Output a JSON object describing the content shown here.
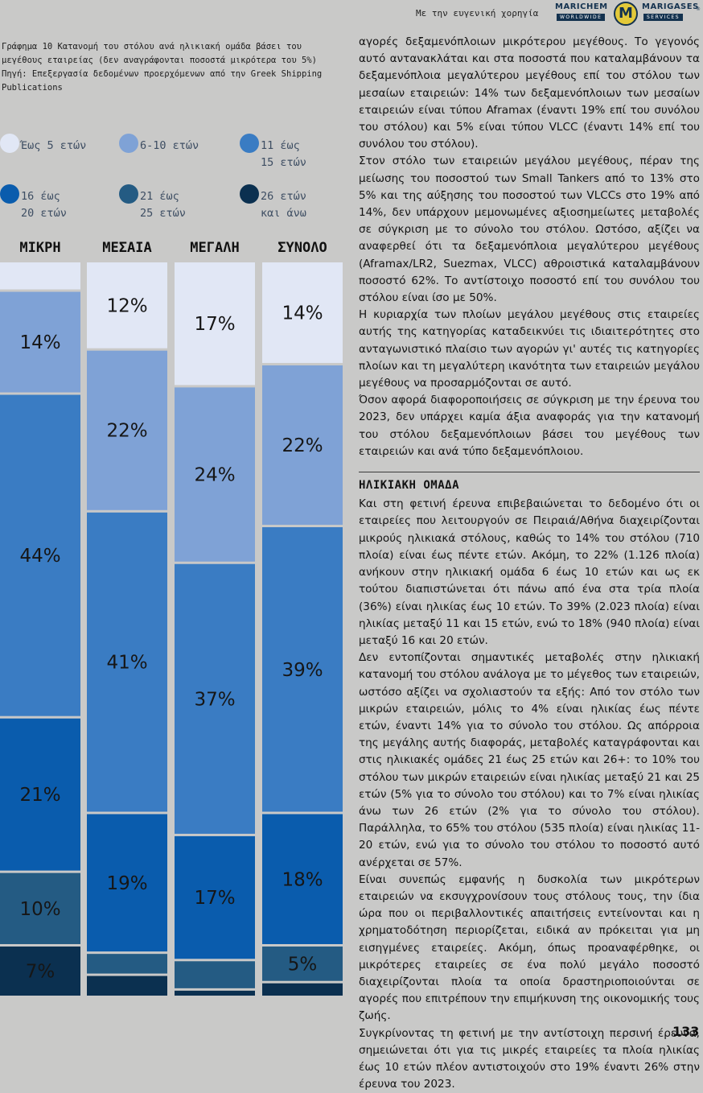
{
  "header": {
    "sponsor_text": "Με την ευγενική χορηγία",
    "logo_left_name": "MARICHEM",
    "logo_left_sub": "WORLDWIDE",
    "logo_mark": "M",
    "logo_right_name": "MARIGASES",
    "logo_right_sub": "SERVICES",
    "logo_reg": "®"
  },
  "chart_caption": {
    "line1": "Γράφημα 10  Κατανομή του στόλου ανά ηλικιακή ομάδα βάσει του",
    "line2": "μεγέθους εταιρείας (δεν αναγράφονται ποσοστά μικρότερα του 5%)",
    "line3": "Πηγή: Επεξεργασία δεδομένων προερχόμενων από την Greek Shipping",
    "line4": "Publications"
  },
  "legend": [
    {
      "label_l1": "Έως 5 ετών",
      "label_l2": "",
      "color": "#e1e7f5"
    },
    {
      "label_l1": "6-10 ετών",
      "label_l2": "",
      "color": "#7fa2d6"
    },
    {
      "label_l1": "11 έως",
      "label_l2": "15 ετών",
      "color": "#3a7cc3"
    },
    {
      "label_l1": "16 έως",
      "label_l2": "20 ετών",
      "color": "#0a5cad"
    },
    {
      "label_l1": "21 έως",
      "label_l2": "25 ετών",
      "color": "#245b83"
    },
    {
      "label_l1": "26 ετών",
      "label_l2": "και άνω",
      "color": "#0b3050"
    }
  ],
  "chart_data": {
    "type": "bar",
    "stacked": true,
    "title": "Κατανομή του στόλου ανά ηλικιακή ομάδα βάσει του μεγέθους εταιρείας",
    "categories": [
      "ΜΙΚΡΗ",
      "ΜΕΣΑΙΑ",
      "ΜΕΓΑΛΗ",
      "ΣΥΝΟΛΟ"
    ],
    "ylim": [
      0,
      100
    ],
    "series": [
      {
        "name": "Έως 5 ετών",
        "values": [
          4,
          12,
          17,
          14
        ],
        "labels": [
          "",
          "12%",
          "17%",
          "14%"
        ]
      },
      {
        "name": "6-10 ετών",
        "values": [
          14,
          22,
          24,
          22
        ],
        "labels": [
          "14%",
          "22%",
          "24%",
          "22%"
        ]
      },
      {
        "name": "11 έως 15 ετών",
        "values": [
          44,
          41,
          37,
          39
        ],
        "labels": [
          "44%",
          "41%",
          "37%",
          "39%"
        ]
      },
      {
        "name": "16 έως 20 ετών",
        "values": [
          21,
          19,
          17,
          18
        ],
        "labels": [
          "21%",
          "19%",
          "17%",
          "18%"
        ]
      },
      {
        "name": "21 έως 25 ετών",
        "values": [
          10,
          3,
          4,
          5
        ],
        "labels": [
          "10%",
          "",
          "",
          "5%"
        ]
      },
      {
        "name": "26 ετών και άνω",
        "values": [
          7,
          3,
          1,
          2
        ],
        "labels": [
          "7%",
          "",
          "",
          ""
        ]
      }
    ]
  },
  "body": {
    "p1": "αγορές δεξαμενόπλοιων μικρότερου μεγέθους. Το γεγονός αυτό αντανακλάται και στα ποσοστά που καταλαμβάνουν τα δεξαμενόπλοια μεγαλύτερου μεγέθους επί του στόλου των μεσαίων εταιρειών: 14% των δεξαμενόπλοιων των μεσαίων εταιρειών είναι τύπου Aframax (έναντι 19% επί του συνόλου του στόλου) και 5% είναι τύπου VLCC (έναντι 14% επί του συνόλου του στόλου).",
    "p2": "Στον στόλο των εταιρειών μεγάλου μεγέθους, πέραν της μείωσης του ποσοστού των Small Tankers από το 13% στο 5% και της αύξησης του ποσοστού των VLCCs στο 19% από 14%, δεν υπάρχουν μεμονωμένες αξιοσημείωτες μεταβολές σε σύγκριση με το σύνολο του στόλου. Ωστόσο, αξίζει να αναφερθεί ότι τα δεξαμενόπλοια μεγαλύτερου μεγέθους (Aframax/LR2, Suezmax, VLCC) αθροιστικά καταλαμβάνουν ποσοστό 62%. Το αντίστοιχο ποσοστό επί του συνόλου του στόλου είναι ίσο με 50%.",
    "p3": "Η κυριαρχία των πλοίων μεγάλου μεγέθους στις εταιρείες αυτής της κατηγορίας καταδεικνύει τις ιδιαιτερότητες στο ανταγωνιστικό πλαίσιο των αγορών γι' αυτές τις κατηγορίες πλοίων και τη μεγαλύτερη ικανότητα των εταιρειών μεγάλου μεγέθους να προσαρμόζονται σε αυτό.",
    "p4": "Όσον αφορά διαφοροποιήσεις σε σύγκριση με την έρευνα του 2023, δεν υπάρχει καμία άξια αναφοράς για την κατανομή του στόλου δεξαμενόπλοιων βάσει του μεγέθους των εταιρειών και ανά τύπο δεξαμενόπλοιου.",
    "section_title": "ΗΛΙΚΙΑΚΗ ΟΜΑΔΑ",
    "p5": "Και στη φετινή έρευνα επιβεβαιώνεται το δεδομένο ότι οι εταιρείες που λειτουργούν σε Πειραιά/Αθήνα διαχειρίζονται μικρούς ηλικιακά στόλους, καθώς το 14% του στόλου (710 πλοία) είναι έως πέντε ετών. Ακόμη, το 22% (1.126 πλοία) ανήκουν στην ηλικιακή ομάδα 6 έως 10 ετών και ως εκ τούτου διαπιστώνεται ότι πάνω από ένα στα τρία πλοία (36%) είναι ηλικίας έως 10 ετών. Το 39% (2.023 πλοία) είναι ηλικίας μεταξύ 11 και 15 ετών, ενώ το 18% (940 πλοία) είναι μεταξύ 16 και 20 ετών.",
    "p6": "Δεν εντοπίζονται σημαντικές μεταβολές στην ηλικιακή κατανομή του στόλου ανάλογα με το μέγεθος των εταιρειών, ωστόσο αξίζει να σχολιαστούν τα εξής: Από τον στόλο των μικρών εταιρειών, μόλις το 4% είναι ηλικίας έως πέντε ετών, έναντι 14% για το σύνολο του στόλου. Ως απόρροια της μεγάλης αυτής διαφοράς, μεταβολές καταγράφονται και στις ηλικιακές ομάδες 21 έως 25 ετών και 26+: το 10% του στόλου των μικρών εταιρειών είναι ηλικίας μεταξύ 21 και 25 ετών (5% για το σύνολο του στόλου) και το 7% είναι ηλικίας άνω των 26 ετών (2% για το σύνολο του στόλου). Παράλληλα, το 65% του στόλου (535 πλοία) είναι ηλικίας 11-20 ετών, ενώ για το σύνολο του στόλου το ποσοστό αυτό ανέρχεται σε 57%.",
    "p7": "Είναι συνεπώς εμφανής η δυσκολία των μικρότερων εταιρειών να εκσυγχρονίσουν τους στόλους τους, την ίδια ώρα που οι περιβαλλοντικές απαιτήσεις εντείνονται και η χρηματοδότηση περιορίζεται, ειδικά αν πρόκειται για μη εισηγμένες εταιρείες. Ακόμη, όπως προαναφέρθηκε, οι μικρότερες εταιρείες σε ένα πολύ μεγάλο ποσοστό διαχειρίζονται πλοία τα οποία δραστηριοποιούνται σε αγορές που επιτρέπουν την επιμήκυνση της οικονομικής τους ζωής.",
    "p8": "Συγκρίνοντας τη φετινή με την αντίστοιχη περσινή έρευνα, σημειώνεται ότι για τις μικρές εταιρείες τα πλοία ηλικίας έως 10 ετών πλέον αντιστοιχούν στο 19% έναντι 26% στην έρευνα του 2023."
  },
  "page_number": "133"
}
